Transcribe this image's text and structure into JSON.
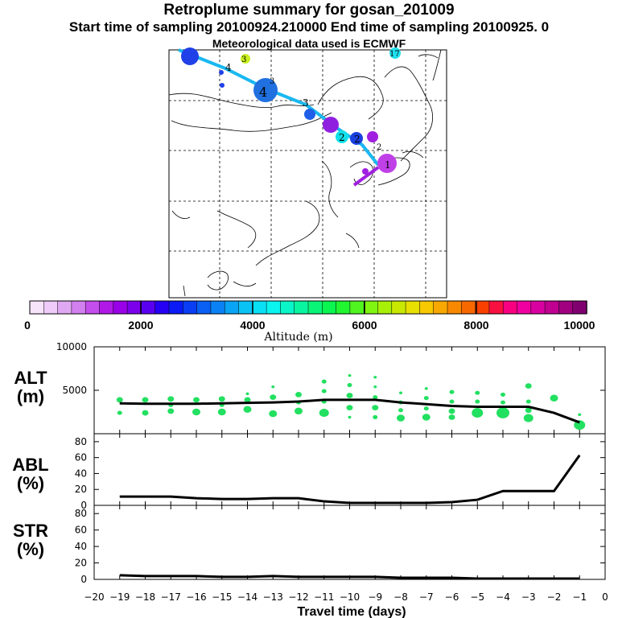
{
  "header": {
    "title": "Retroplume summary for gosan_201009",
    "subtitle": "Start time of sampling 20100924.210000     End time of sampling 20100925.     0",
    "met_note": "Meteorological data used is ECMWF"
  },
  "colorbar": {
    "label": "Altitude (m)",
    "ticks": [
      "0",
      "2000",
      "4000",
      "6000",
      "8000",
      "10000"
    ],
    "colors": [
      "#f7e4fb",
      "#eecbf8",
      "#e0a8f3",
      "#d27ff0",
      "#c34ded",
      "#b018e8",
      "#9a00e8",
      "#7c00ec",
      "#5a00f0",
      "#2600f4",
      "#0a1bf5",
      "#0a3ef5",
      "#0a60f5",
      "#0a82f5",
      "#0aa4f5",
      "#0ac3f5",
      "#0ae0f5",
      "#0af5f0",
      "#0af5c8",
      "#0af5a0",
      "#0af578",
      "#0af550",
      "#20f530",
      "#50f520",
      "#80f510",
      "#a8f008",
      "#c8e800",
      "#e8e000",
      "#f8c800",
      "#f8a800",
      "#f88800",
      "#f86800",
      "#f84000",
      "#f81040",
      "#f80080",
      "#f000a0",
      "#d800a0",
      "#c00090",
      "#a00080",
      "#800070"
    ]
  },
  "map": {
    "markers": [
      {
        "label": "1"
      },
      {
        "label": "2"
      },
      {
        "label": "2"
      },
      {
        "label": "2"
      },
      {
        "label": "3"
      },
      {
        "label": "3"
      },
      {
        "label": "3"
      },
      {
        "label": "4"
      },
      {
        "label": "4"
      },
      {
        "label": "17"
      }
    ]
  },
  "panels": {
    "alt_label": [
      "ALT",
      "(m)"
    ],
    "abl_label": [
      "ABL",
      "(%)"
    ],
    "str_label": [
      "STR",
      "(%)"
    ],
    "x_axis_label": "Travel time (days)"
  },
  "chart_data": [
    {
      "type": "line",
      "title": "ALT (m)",
      "xlabel": "Travel time (days)",
      "ylabel": "ALT (m)",
      "xlim": [
        -20,
        0
      ],
      "ylim": [
        0,
        10000
      ],
      "yticks": [
        5000,
        10000
      ],
      "xticks": [
        -20,
        -19,
        -18,
        -17,
        -16,
        -15,
        -14,
        -13,
        -12,
        -11,
        -10,
        -9,
        -8,
        -7,
        -6,
        -5,
        -4,
        -3,
        -2,
        -1,
        0
      ],
      "x": [
        -19,
        -18,
        -17,
        -16,
        -15,
        -14,
        -13,
        -12,
        -11,
        -10,
        -9,
        -8,
        -7,
        -6,
        -5,
        -4,
        -3,
        -2,
        -1
      ],
      "values": [
        3500,
        3450,
        3450,
        3450,
        3500,
        3550,
        3600,
        3700,
        3900,
        3900,
        3900,
        3600,
        3400,
        3200,
        3100,
        3100,
        3100,
        2400,
        1300
      ],
      "scatter": [
        {
          "x": -19,
          "y": 3900,
          "r": 4
        },
        {
          "x": -19,
          "y": 2400,
          "r": 3
        },
        {
          "x": -18,
          "y": 3900,
          "r": 4
        },
        {
          "x": -18,
          "y": 2400,
          "r": 4
        },
        {
          "x": -17,
          "y": 4000,
          "r": 4
        },
        {
          "x": -17,
          "y": 3300,
          "r": 3
        },
        {
          "x": -17,
          "y": 2600,
          "r": 4
        },
        {
          "x": -16,
          "y": 3900,
          "r": 4
        },
        {
          "x": -16,
          "y": 2500,
          "r": 5
        },
        {
          "x": -15,
          "y": 4000,
          "r": 4
        },
        {
          "x": -15,
          "y": 3300,
          "r": 3
        },
        {
          "x": -15,
          "y": 2500,
          "r": 5
        },
        {
          "x": -14,
          "y": 4600,
          "r": 2
        },
        {
          "x": -14,
          "y": 3900,
          "r": 4
        },
        {
          "x": -14,
          "y": 2800,
          "r": 5
        },
        {
          "x": -13,
          "y": 5400,
          "r": 2
        },
        {
          "x": -13,
          "y": 4200,
          "r": 4
        },
        {
          "x": -13,
          "y": 2300,
          "r": 5
        },
        {
          "x": -12,
          "y": 4500,
          "r": 4
        },
        {
          "x": -12,
          "y": 3600,
          "r": 3
        },
        {
          "x": -12,
          "y": 2600,
          "r": 5
        },
        {
          "x": -11,
          "y": 6000,
          "r": 3
        },
        {
          "x": -11,
          "y": 4900,
          "r": 3
        },
        {
          "x": -11,
          "y": 3700,
          "r": 3
        },
        {
          "x": -11,
          "y": 2400,
          "r": 6
        },
        {
          "x": -10,
          "y": 6700,
          "r": 2
        },
        {
          "x": -10,
          "y": 5600,
          "r": 3
        },
        {
          "x": -10,
          "y": 4400,
          "r": 4
        },
        {
          "x": -10,
          "y": 3000,
          "r": 4
        },
        {
          "x": -10,
          "y": 1900,
          "r": 2
        },
        {
          "x": -9,
          "y": 6500,
          "r": 2
        },
        {
          "x": -9,
          "y": 5400,
          "r": 2
        },
        {
          "x": -9,
          "y": 4200,
          "r": 3
        },
        {
          "x": -9,
          "y": 3000,
          "r": 4
        },
        {
          "x": -9,
          "y": 1900,
          "r": 3
        },
        {
          "x": -8,
          "y": 4700,
          "r": 2
        },
        {
          "x": -8,
          "y": 3600,
          "r": 3
        },
        {
          "x": -8,
          "y": 2700,
          "r": 3
        },
        {
          "x": -8,
          "y": 1800,
          "r": 5
        },
        {
          "x": -7,
          "y": 5200,
          "r": 2
        },
        {
          "x": -7,
          "y": 4100,
          "r": 3
        },
        {
          "x": -7,
          "y": 2900,
          "r": 3
        },
        {
          "x": -7,
          "y": 1900,
          "r": 5
        },
        {
          "x": -6,
          "y": 4800,
          "r": 3
        },
        {
          "x": -6,
          "y": 3700,
          "r": 3
        },
        {
          "x": -6,
          "y": 2600,
          "r": 4
        },
        {
          "x": -6,
          "y": 1900,
          "r": 4
        },
        {
          "x": -5,
          "y": 4700,
          "r": 3
        },
        {
          "x": -5,
          "y": 3700,
          "r": 3
        },
        {
          "x": -5,
          "y": 2400,
          "r": 7
        },
        {
          "x": -4,
          "y": 4500,
          "r": 3
        },
        {
          "x": -4,
          "y": 3600,
          "r": 3
        },
        {
          "x": -4,
          "y": 2400,
          "r": 8
        },
        {
          "x": -3,
          "y": 5500,
          "r": 4
        },
        {
          "x": -3,
          "y": 3700,
          "r": 3
        },
        {
          "x": -3,
          "y": 2700,
          "r": 4
        },
        {
          "x": -3,
          "y": 1800,
          "r": 6
        },
        {
          "x": -2,
          "y": 4100,
          "r": 5
        },
        {
          "x": -1,
          "y": 2200,
          "r": 2
        },
        {
          "x": -1,
          "y": 1000,
          "r": 7
        }
      ]
    },
    {
      "type": "line",
      "title": "ABL (%)",
      "xlabel": "Travel time (days)",
      "ylabel": "ABL (%)",
      "xlim": [
        -20,
        0
      ],
      "ylim": [
        0,
        90
      ],
      "yticks": [
        0,
        20,
        40,
        60,
        80
      ],
      "x": [
        -19,
        -18,
        -17,
        -16,
        -15,
        -14,
        -13,
        -12,
        -11,
        -10,
        -9,
        -8,
        -7,
        -6,
        -5,
        -4,
        -3,
        -2,
        -1
      ],
      "values": [
        11,
        11,
        11,
        9,
        8,
        8,
        9,
        9,
        5,
        3,
        3,
        3,
        3,
        4,
        7,
        18,
        18,
        18,
        63
      ]
    },
    {
      "type": "line",
      "title": "STR (%)",
      "xlabel": "Travel time (days)",
      "ylabel": "STR (%)",
      "xlim": [
        -20,
        0
      ],
      "ylim": [
        0,
        90
      ],
      "yticks": [
        0,
        20,
        40,
        60,
        80
      ],
      "x": [
        -19,
        -18,
        -17,
        -16,
        -15,
        -14,
        -13,
        -12,
        -11,
        -10,
        -9,
        -8,
        -7,
        -6,
        -5,
        -4,
        -3,
        -2,
        -1
      ],
      "values": [
        5,
        4,
        4,
        4,
        3,
        3,
        4,
        3,
        3,
        3,
        3,
        2,
        2,
        2,
        1,
        1,
        1,
        1,
        1
      ]
    }
  ]
}
